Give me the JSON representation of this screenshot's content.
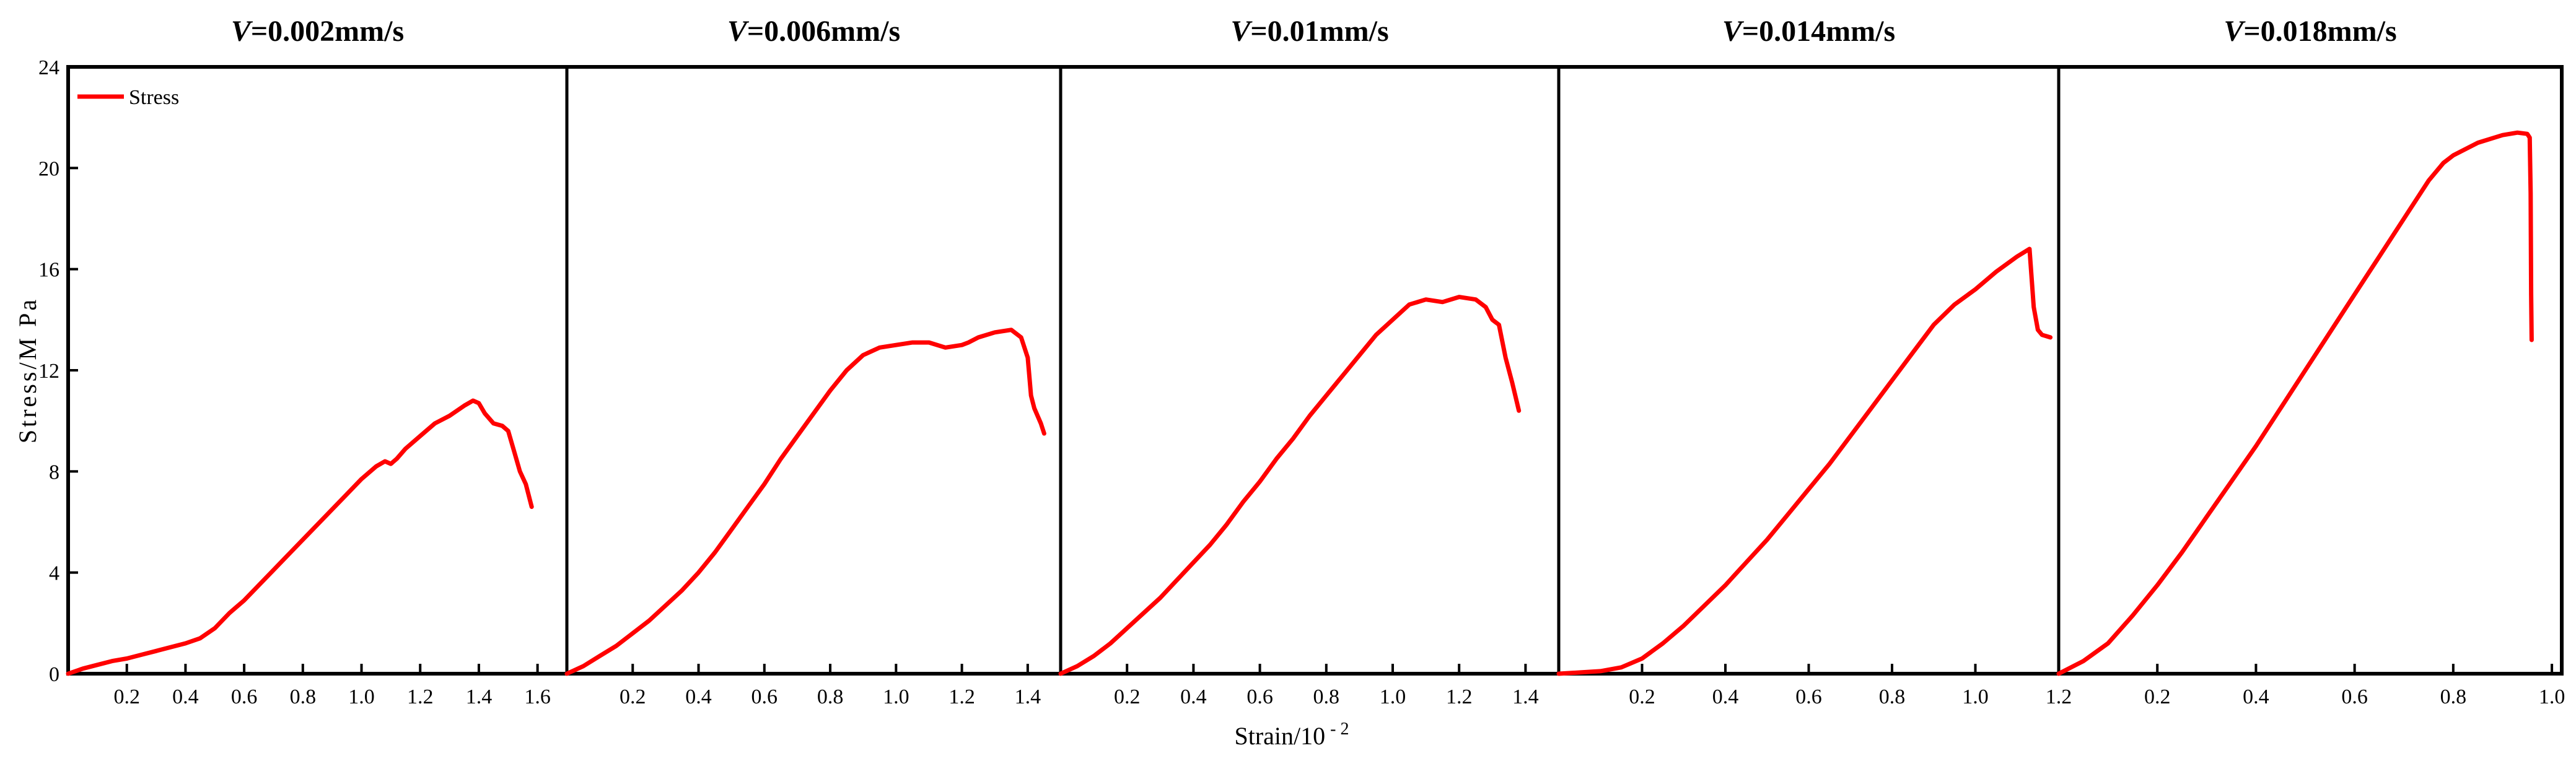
{
  "chart_data": {
    "type": "line",
    "ylabel": "Stress/M Pa",
    "xlabel_prefix": "Strain/10",
    "xlabel_exp": "- 2",
    "ylim": [
      0,
      24
    ],
    "yticks": [
      0,
      4,
      8,
      12,
      16,
      20,
      24
    ],
    "grid": false,
    "legend": {
      "entries": [
        "Stress"
      ],
      "position": "top-left"
    },
    "series_color": "#ff0000",
    "panels": [
      {
        "title_var": "V",
        "title_value": "=0.002mm/s",
        "xlim": [
          0,
          1.7
        ],
        "xticks": [
          0.2,
          0.4,
          0.6,
          0.8,
          1.0,
          1.2,
          1.4,
          1.6
        ],
        "series": [
          {
            "name": "Stress",
            "x": [
              0,
              0.05,
              0.1,
              0.15,
              0.2,
              0.25,
              0.3,
              0.35,
              0.4,
              0.45,
              0.5,
              0.55,
              0.6,
              0.65,
              0.7,
              0.75,
              0.8,
              0.85,
              0.9,
              0.95,
              1.0,
              1.05,
              1.08,
              1.1,
              1.12,
              1.15,
              1.2,
              1.25,
              1.3,
              1.35,
              1.38,
              1.4,
              1.42,
              1.45,
              1.48,
              1.5,
              1.52,
              1.54,
              1.56,
              1.58
            ],
            "y": [
              0,
              0.2,
              0.35,
              0.5,
              0.6,
              0.75,
              0.9,
              1.05,
              1.2,
              1.4,
              1.8,
              2.4,
              2.9,
              3.5,
              4.1,
              4.7,
              5.3,
              5.9,
              6.5,
              7.1,
              7.7,
              8.2,
              8.4,
              8.3,
              8.5,
              8.9,
              9.4,
              9.9,
              10.2,
              10.6,
              10.8,
              10.7,
              10.3,
              9.9,
              9.8,
              9.6,
              8.8,
              8.0,
              7.5,
              6.6
            ]
          }
        ]
      },
      {
        "title_var": "V",
        "title_value": "=0.006mm/s",
        "xlim": [
          0,
          1.5
        ],
        "xticks": [
          0.2,
          0.4,
          0.6,
          0.8,
          1.0,
          1.2,
          1.4
        ],
        "series": [
          {
            "name": "Stress",
            "x": [
              0,
              0.05,
              0.1,
              0.15,
              0.2,
              0.25,
              0.3,
              0.35,
              0.4,
              0.45,
              0.5,
              0.55,
              0.6,
              0.65,
              0.7,
              0.75,
              0.8,
              0.85,
              0.9,
              0.95,
              1.0,
              1.05,
              1.1,
              1.15,
              1.2,
              1.22,
              1.25,
              1.3,
              1.35,
              1.38,
              1.4,
              1.41,
              1.42,
              1.44,
              1.45
            ],
            "y": [
              0,
              0.3,
              0.7,
              1.1,
              1.6,
              2.1,
              2.7,
              3.3,
              4.0,
              4.8,
              5.7,
              6.6,
              7.5,
              8.5,
              9.4,
              10.3,
              11.2,
              12.0,
              12.6,
              12.9,
              13.0,
              13.1,
              13.1,
              12.9,
              13.0,
              13.1,
              13.3,
              13.5,
              13.6,
              13.3,
              12.5,
              11.0,
              10.5,
              9.9,
              9.5
            ]
          }
        ]
      },
      {
        "title_var": "V",
        "title_value": "=0.01mm/s",
        "xlim": [
          0,
          1.5
        ],
        "xticks": [
          0.2,
          0.4,
          0.6,
          0.8,
          1.0,
          1.2,
          1.4
        ],
        "series": [
          {
            "name": "Stress",
            "x": [
              0,
              0.05,
              0.1,
              0.15,
              0.2,
              0.25,
              0.3,
              0.35,
              0.4,
              0.45,
              0.5,
              0.55,
              0.6,
              0.65,
              0.7,
              0.75,
              0.8,
              0.85,
              0.9,
              0.95,
              1.0,
              1.05,
              1.1,
              1.15,
              1.2,
              1.25,
              1.28,
              1.3,
              1.32,
              1.34,
              1.36,
              1.38
            ],
            "y": [
              0,
              0.3,
              0.7,
              1.2,
              1.8,
              2.4,
              3.0,
              3.7,
              4.4,
              5.1,
              5.9,
              6.8,
              7.6,
              8.5,
              9.3,
              10.2,
              11.0,
              11.8,
              12.6,
              13.4,
              14.0,
              14.6,
              14.8,
              14.7,
              14.9,
              14.8,
              14.5,
              14.0,
              13.8,
              12.5,
              11.5,
              10.4
            ]
          }
        ]
      },
      {
        "title_var": "V",
        "title_value": "=0.014mm/s",
        "xlim": [
          0,
          1.2
        ],
        "xticks": [
          0.2,
          0.4,
          0.6,
          0.8,
          1.0,
          1.2
        ],
        "series": [
          {
            "name": "Stress",
            "x": [
              0,
              0.05,
              0.1,
              0.15,
              0.2,
              0.25,
              0.3,
              0.35,
              0.4,
              0.45,
              0.5,
              0.55,
              0.6,
              0.65,
              0.7,
              0.75,
              0.8,
              0.85,
              0.9,
              0.95,
              1.0,
              1.05,
              1.1,
              1.13,
              1.14,
              1.15,
              1.16,
              1.18
            ],
            "y": [
              0,
              0.05,
              0.1,
              0.25,
              0.6,
              1.2,
              1.9,
              2.7,
              3.5,
              4.4,
              5.3,
              6.3,
              7.3,
              8.3,
              9.4,
              10.5,
              11.6,
              12.7,
              13.8,
              14.6,
              15.2,
              15.9,
              16.5,
              16.8,
              14.5,
              13.6,
              13.4,
              13.3
            ]
          }
        ]
      },
      {
        "title_var": "V",
        "title_value": "=0.018mm/s",
        "xlim": [
          0,
          1.02
        ],
        "xticks": [
          0.2,
          0.4,
          0.6,
          0.8,
          1.0
        ],
        "series": [
          {
            "name": "Stress",
            "x": [
              0,
              0.05,
              0.1,
              0.15,
              0.2,
              0.25,
              0.3,
              0.35,
              0.4,
              0.45,
              0.5,
              0.55,
              0.6,
              0.65,
              0.7,
              0.75,
              0.78,
              0.8,
              0.85,
              0.9,
              0.93,
              0.95,
              0.955,
              0.957,
              0.958,
              0.959
            ],
            "y": [
              0,
              0.5,
              1.2,
              2.3,
              3.5,
              4.8,
              6.2,
              7.6,
              9.0,
              10.5,
              12.0,
              13.5,
              15.0,
              16.5,
              18.0,
              19.5,
              20.2,
              20.5,
              21.0,
              21.3,
              21.4,
              21.35,
              21.2,
              19.0,
              15.0,
              13.2
            ]
          }
        ]
      }
    ]
  }
}
